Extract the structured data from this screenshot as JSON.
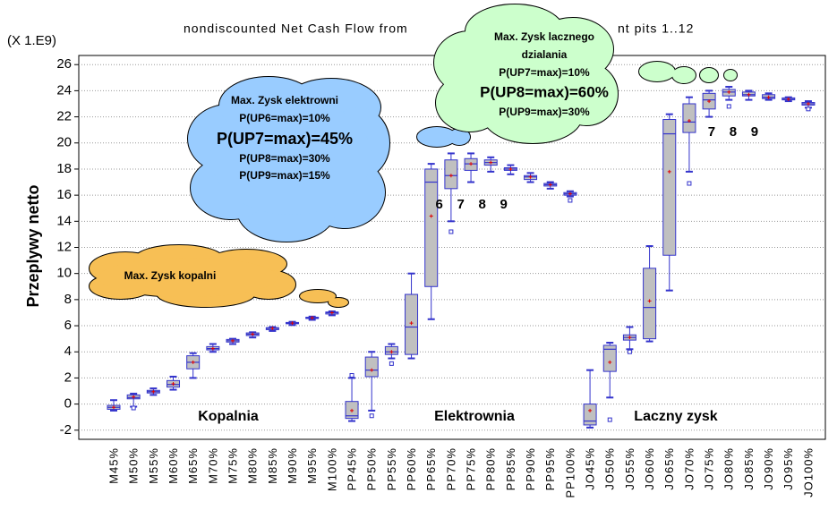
{
  "chart_data": {
    "type": "box",
    "title": "nondiscounted Net Cash Flow from",
    "title_end": "nt pits 1..12",
    "y_unit": "(X 1.E9)",
    "y_label": "Przeplywy netto",
    "ylim": [
      -2.7,
      26.7
    ],
    "yticks": [
      -2,
      0,
      2,
      4,
      6,
      8,
      10,
      12,
      14,
      16,
      18,
      20,
      22,
      24,
      26
    ],
    "grid": true,
    "box_color": "#c0c0c0",
    "line_color": "#3333cc",
    "mean_color": "#e00000",
    "categories": [
      "M45%",
      "M50%",
      "M55%",
      "M60%",
      "M65%",
      "M70%",
      "M75%",
      "M80%",
      "M85%",
      "M90%",
      "M95%",
      "M100%",
      "PP45%",
      "PP50%",
      "PP55%",
      "PP60%",
      "PP65%",
      "PP70%",
      "PP75%",
      "PP80%",
      "PP85%",
      "PP90%",
      "PP95%",
      "PP100%",
      "JO45%",
      "JO50%",
      "JO55%",
      "JO60%",
      "JO65%",
      "JO70%",
      "JO75%",
      "JO80%",
      "JO85%",
      "JO90%",
      "JO95%",
      "JO100%"
    ],
    "boxes": [
      {
        "low": -0.5,
        "q1": -0.4,
        "median": -0.25,
        "q3": -0.1,
        "high": 0.3,
        "mean": -0.25,
        "outliers": []
      },
      {
        "low": -0.2,
        "q1": 0.4,
        "median": 0.5,
        "q3": 0.7,
        "high": 0.8,
        "mean": 0.55,
        "outliers": [
          -0.3
        ]
      },
      {
        "low": 0.7,
        "q1": 0.85,
        "median": 0.95,
        "q3": 1.05,
        "high": 1.2,
        "mean": 0.95,
        "outliers": []
      },
      {
        "low": 1.1,
        "q1": 1.3,
        "median": 1.5,
        "q3": 1.8,
        "high": 2.1,
        "mean": 1.55,
        "outliers": []
      },
      {
        "low": 2.0,
        "q1": 2.7,
        "median": 3.2,
        "q3": 3.7,
        "high": 3.9,
        "mean": 3.2,
        "outliers": []
      },
      {
        "low": 4.0,
        "q1": 4.15,
        "median": 4.25,
        "q3": 4.4,
        "high": 4.6,
        "mean": 4.25,
        "outliers": []
      },
      {
        "low": 4.6,
        "q1": 4.75,
        "median": 4.85,
        "q3": 4.95,
        "high": 5.0,
        "mean": 4.85,
        "outliers": []
      },
      {
        "low": 5.1,
        "q1": 5.25,
        "median": 5.35,
        "q3": 5.45,
        "high": 5.5,
        "mean": 5.35,
        "outliers": []
      },
      {
        "low": 5.6,
        "q1": 5.7,
        "median": 5.8,
        "q3": 5.85,
        "high": 5.9,
        "mean": 5.8,
        "outliers": []
      },
      {
        "low": 6.05,
        "q1": 6.15,
        "median": 6.2,
        "q3": 6.25,
        "high": 6.3,
        "mean": 6.2,
        "outliers": []
      },
      {
        "low": 6.45,
        "q1": 6.55,
        "median": 6.6,
        "q3": 6.65,
        "high": 6.7,
        "mean": 6.6,
        "outliers": []
      },
      {
        "low": 6.8,
        "q1": 6.9,
        "median": 7.0,
        "q3": 7.05,
        "high": 7.1,
        "mean": 7.0,
        "outliers": []
      },
      {
        "low": -1.3,
        "q1": -1.1,
        "median": -0.9,
        "q3": 0.2,
        "high": 2.0,
        "mean": -0.5,
        "outliers": [
          2.2
        ]
      },
      {
        "low": -0.5,
        "q1": 2.1,
        "median": 2.6,
        "q3": 3.6,
        "high": 4.0,
        "mean": 2.6,
        "outliers": [
          -0.9
        ]
      },
      {
        "low": 3.5,
        "q1": 3.8,
        "median": 4.0,
        "q3": 4.4,
        "high": 4.6,
        "mean": 4.0,
        "outliers": [
          3.1
        ]
      },
      {
        "low": 3.5,
        "q1": 3.8,
        "median": 5.9,
        "q3": 8.4,
        "high": 10.0,
        "mean": 6.2,
        "outliers": []
      },
      {
        "low": 6.5,
        "q1": 9.0,
        "median": 17.0,
        "q3": 18.0,
        "high": 18.4,
        "mean": 14.4,
        "outliers": []
      },
      {
        "low": 14.0,
        "q1": 16.5,
        "median": 17.5,
        "q3": 18.7,
        "high": 19.2,
        "mean": 17.5,
        "outliers": [
          13.2
        ]
      },
      {
        "low": 17.0,
        "q1": 17.9,
        "median": 18.4,
        "q3": 18.8,
        "high": 19.2,
        "mean": 18.4,
        "outliers": []
      },
      {
        "low": 17.8,
        "q1": 18.3,
        "median": 18.5,
        "q3": 18.7,
        "high": 18.9,
        "mean": 18.5,
        "outliers": []
      },
      {
        "low": 17.6,
        "q1": 17.9,
        "median": 18.0,
        "q3": 18.1,
        "high": 18.3,
        "mean": 18.0,
        "outliers": []
      },
      {
        "low": 17.0,
        "q1": 17.2,
        "median": 17.4,
        "q3": 17.5,
        "high": 17.7,
        "mean": 17.4,
        "outliers": []
      },
      {
        "low": 16.5,
        "q1": 16.7,
        "median": 16.8,
        "q3": 16.9,
        "high": 17.0,
        "mean": 16.8,
        "outliers": []
      },
      {
        "low": 15.9,
        "q1": 16.0,
        "median": 16.1,
        "q3": 16.2,
        "high": 16.3,
        "mean": 16.1,
        "outliers": [
          15.6
        ]
      },
      {
        "low": -1.8,
        "q1": -1.6,
        "median": -1.3,
        "q3": 0.0,
        "high": 2.6,
        "mean": -0.5,
        "outliers": []
      },
      {
        "low": 0.5,
        "q1": 2.5,
        "median": 4.2,
        "q3": 4.5,
        "high": 4.7,
        "mean": 3.2,
        "outliers": [
          -1.2
        ]
      },
      {
        "low": 4.2,
        "q1": 4.9,
        "median": 5.1,
        "q3": 5.3,
        "high": 5.9,
        "mean": 5.1,
        "outliers": [
          4.0
        ]
      },
      {
        "low": 4.8,
        "q1": 5.0,
        "median": 7.4,
        "q3": 10.4,
        "high": 12.1,
        "mean": 7.9,
        "outliers": []
      },
      {
        "low": 8.7,
        "q1": 11.4,
        "median": 20.7,
        "q3": 21.8,
        "high": 22.2,
        "mean": 17.8,
        "outliers": []
      },
      {
        "low": 17.8,
        "q1": 20.8,
        "median": 21.6,
        "q3": 23.0,
        "high": 23.5,
        "mean": 21.7,
        "outliers": [
          16.9
        ]
      },
      {
        "low": 22.0,
        "q1": 22.6,
        "median": 23.3,
        "q3": 23.8,
        "high": 24.0,
        "mean": 23.2,
        "outliers": []
      },
      {
        "low": 23.3,
        "q1": 23.6,
        "median": 23.9,
        "q3": 24.1,
        "high": 24.3,
        "mean": 23.9,
        "outliers": [
          22.8
        ]
      },
      {
        "low": 23.3,
        "q1": 23.6,
        "median": 23.7,
        "q3": 23.9,
        "high": 24.0,
        "mean": 23.7,
        "outliers": []
      },
      {
        "low": 23.3,
        "q1": 23.4,
        "median": 23.5,
        "q3": 23.7,
        "high": 23.8,
        "mean": 23.5,
        "outliers": []
      },
      {
        "low": 23.2,
        "q1": 23.3,
        "median": 23.35,
        "q3": 23.45,
        "high": 23.5,
        "mean": 23.35,
        "outliers": []
      },
      {
        "low": 22.7,
        "q1": 22.9,
        "median": 23.0,
        "q3": 23.1,
        "high": 23.2,
        "mean": 23.0,
        "outliers": [
          22.6
        ]
      }
    ],
    "group_labels": [
      "Kopalnia",
      "Elektrownia",
      "Laczny zysk"
    ],
    "cloud_mine": [
      "Max. Zysk kopalni"
    ],
    "cloud_plant": [
      "Max. Zysk elektrowni",
      "P(UP6=max)=10%",
      "P(UP7=max)=45%",
      "P(UP8=max)=30%",
      "P(UP9=max)=15%"
    ],
    "cloud_total": [
      "Max. Zysk lacznego",
      "dzialania",
      "P(UP7=max)=10%",
      "P(UP8=max)=60%",
      "P(UP9=max)=30%"
    ],
    "pit_numbers_plant": [
      "6",
      "7",
      "8",
      "9"
    ],
    "pit_numbers_total": [
      "7",
      "8",
      "9"
    ]
  }
}
